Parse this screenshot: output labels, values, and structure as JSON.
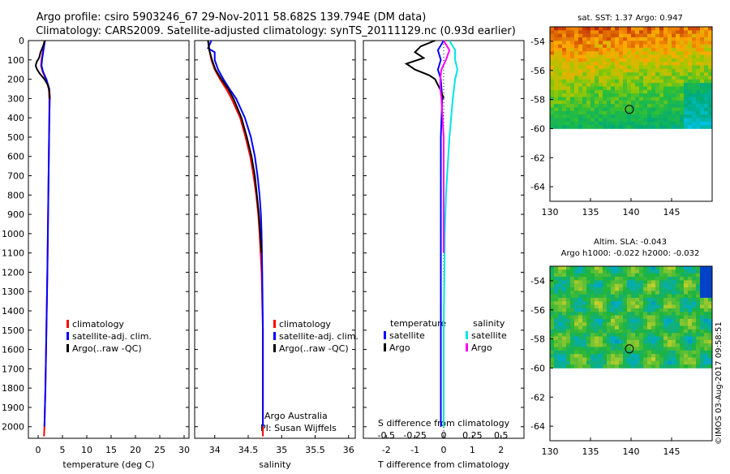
{
  "title": {
    "line1": "Argo profile: csiro 5903246_67 29-Nov-2011 58.682S 139.794E (DM data)",
    "line2": "Climatology: CARS2009. Satellite-adjusted climatology: synTS_20111129.nc (0.93d earlier)"
  },
  "credit": "©IMOS 03-Aug-2017 09:58:51",
  "colors": {
    "clim": "#ff0000",
    "sat": "#0000ff",
    "argo": "#000000",
    "s_sat": "#00e5e5",
    "s_argo": "#ff00ff"
  },
  "chart_data": [
    {
      "type": "line",
      "name": "temperature",
      "xlabel": "temperature (deg C)",
      "ylabel": "",
      "xlim": [
        -2,
        31
      ],
      "ylim": [
        2060,
        0
      ],
      "xticks": [
        "0",
        "5",
        "10",
        "15",
        "20",
        "25",
        "30"
      ],
      "yticks": [
        "0",
        "100",
        "200",
        "300",
        "400",
        "500",
        "600",
        "700",
        "800",
        "900",
        "1000",
        "1100",
        "1200",
        "1300",
        "1400",
        "1500",
        "1600",
        "1700",
        "1800",
        "1900",
        "2000"
      ],
      "legend": [
        "climatology",
        "satellite-adj. clim.",
        "Argo(..raw -QC)"
      ],
      "series": [
        {
          "name": "climatology",
          "depth": [
            0,
            50,
            100,
            130,
            160,
            200,
            250,
            300,
            400,
            600,
            800,
            1000,
            1200,
            1500,
            1800,
            2000,
            2050
          ],
          "values": [
            1.3,
            1.0,
            0.7,
            0.6,
            0.9,
            1.6,
            2.2,
            2.3,
            2.3,
            2.2,
            2.1,
            2.0,
            1.9,
            1.7,
            1.5,
            1.3,
            1.2
          ]
        },
        {
          "name": "satellite-adj. clim.",
          "depth": [
            0,
            50,
            100,
            130,
            160,
            200,
            250,
            300,
            400,
            600,
            800,
            1000,
            1200,
            1500,
            1800,
            2000
          ],
          "values": [
            1.4,
            1.1,
            0.8,
            0.7,
            1.0,
            1.7,
            2.3,
            2.4,
            2.3,
            2.2,
            2.1,
            2.0,
            1.9,
            1.7,
            1.5,
            1.3
          ]
        },
        {
          "name": "Argo(..raw -QC)",
          "depth": [
            0,
            30,
            60,
            90,
            110,
            130,
            150,
            170,
            200,
            230,
            260,
            300
          ],
          "values": [
            1.4,
            1.0,
            0.5,
            0.2,
            -0.3,
            -0.5,
            -0.2,
            0.3,
            1.3,
            2.0,
            2.3,
            2.4
          ]
        }
      ]
    },
    {
      "type": "line",
      "name": "salinity",
      "xlabel": "salinity",
      "xlim": [
        33.7,
        36.1
      ],
      "ylim": [
        2060,
        0
      ],
      "xticks": [
        "34",
        "34.5",
        "35",
        "35.5",
        "36"
      ],
      "legend": [
        "climatology",
        "satellite-adj. clim.",
        "Argo(..raw -QC)"
      ],
      "annotation": [
        "Argo Australia",
        "PI: Susan Wijffels"
      ],
      "series": [
        {
          "name": "climatology",
          "depth": [
            0,
            50,
            100,
            150,
            200,
            250,
            300,
            400,
            500,
            600,
            700,
            800,
            900,
            1000,
            1200,
            1500,
            2000,
            2050
          ],
          "values": [
            33.9,
            33.92,
            33.95,
            34.0,
            34.08,
            34.17,
            34.25,
            34.38,
            34.46,
            34.53,
            34.58,
            34.62,
            34.65,
            34.67,
            34.7,
            34.72,
            34.72,
            34.72
          ]
        },
        {
          "name": "satellite-adj. clim.",
          "depth": [
            0,
            40,
            60,
            100,
            150,
            200,
            250,
            300,
            400,
            500,
            600,
            700,
            800,
            900,
            1000,
            1200,
            1500,
            2000
          ],
          "values": [
            33.95,
            33.9,
            34.0,
            34.0,
            34.05,
            34.13,
            34.22,
            34.32,
            34.45,
            34.54,
            34.6,
            34.64,
            34.67,
            34.69,
            34.7,
            34.71,
            34.72,
            34.72
          ]
        },
        {
          "name": "Argo(..raw -QC)",
          "depth": [
            0,
            50,
            100,
            150,
            200,
            250,
            300,
            400,
            500,
            600,
            700,
            800,
            900,
            1000,
            1100
          ],
          "values": [
            33.9,
            33.92,
            33.96,
            34.01,
            34.1,
            34.2,
            34.28,
            34.4,
            34.48,
            34.55,
            34.6,
            34.63,
            34.66,
            34.68,
            34.7
          ]
        }
      ]
    },
    {
      "type": "line",
      "name": "differences",
      "xlabel": "T difference from climatology",
      "xlabel_top": "S difference from climatology",
      "xlim_T": [
        -2.8,
        2.8
      ],
      "xlim_S": [
        -0.7,
        0.7
      ],
      "ylim": [
        2060,
        0
      ],
      "xticks_T": [
        "-2",
        "-1",
        "0",
        "1",
        "2"
      ],
      "xticks_S": [
        "-0.5",
        "-0.25",
        "0",
        "0.25",
        "0.5"
      ],
      "legend_temperature": {
        "heading": "temperature",
        "items": [
          "satellite",
          "Argo"
        ]
      },
      "legend_salinity": {
        "heading": "salinity",
        "items": [
          "satellite",
          "Argo"
        ]
      },
      "series": [
        {
          "name": "T satellite",
          "depth": [
            0,
            50,
            100,
            150,
            200,
            300,
            500,
            800,
            1000,
            1500,
            2000
          ],
          "values": [
            0.0,
            -0.2,
            -0.1,
            -0.2,
            -0.1,
            -0.05,
            -0.1,
            -0.1,
            -0.1,
            -0.1,
            -0.1
          ]
        },
        {
          "name": "T Argo",
          "depth": [
            0,
            30,
            60,
            90,
            120,
            150,
            180,
            200,
            230,
            260,
            300
          ],
          "values": [
            -0.3,
            -0.8,
            -1.0,
            -0.7,
            -1.3,
            -1.0,
            -0.5,
            -0.3,
            -0.2,
            -0.1,
            0.0
          ]
        },
        {
          "name": "S satellite",
          "depth": [
            0,
            50,
            100,
            150,
            200,
            300,
            500,
            800,
            1000,
            1500,
            2000
          ],
          "values": [
            0.05,
            0.1,
            0.1,
            0.12,
            0.1,
            0.08,
            0.05,
            0.02,
            0.01,
            0.0,
            0.0
          ]
        },
        {
          "name": "S Argo",
          "depth": [
            0,
            50,
            100,
            150,
            200,
            250,
            300,
            500,
            800,
            1000,
            1100
          ],
          "values": [
            0.0,
            0.05,
            0.02,
            -0.02,
            -0.03,
            -0.03,
            -0.02,
            0.0,
            0.0,
            0.0,
            0.0
          ]
        }
      ]
    },
    {
      "type": "heatmap",
      "name": "sst-map",
      "title": "sat. SST: 1.37 Argo: 0.947",
      "xlim": [
        130,
        150
      ],
      "ylim": [
        -65,
        -53
      ],
      "xticks": [
        "130",
        "135",
        "140",
        "145"
      ],
      "yticks": [
        "-54",
        "-56",
        "-58",
        "-60",
        "-62",
        "-64"
      ],
      "marker": {
        "lon": 139.794,
        "lat": -58.682
      }
    },
    {
      "type": "heatmap",
      "name": "sla-map",
      "title_line1": "Altim. SLA: -0.043",
      "title_line2": "Argo h1000: -0.022 h2000: -0.032",
      "xlim": [
        130,
        150
      ],
      "ylim": [
        -65,
        -53
      ],
      "xticks": [
        "130",
        "135",
        "140",
        "145"
      ],
      "yticks": [
        "-54",
        "-56",
        "-58",
        "-60",
        "-62",
        "-64"
      ],
      "marker": {
        "lon": 139.794,
        "lat": -58.682
      }
    }
  ]
}
